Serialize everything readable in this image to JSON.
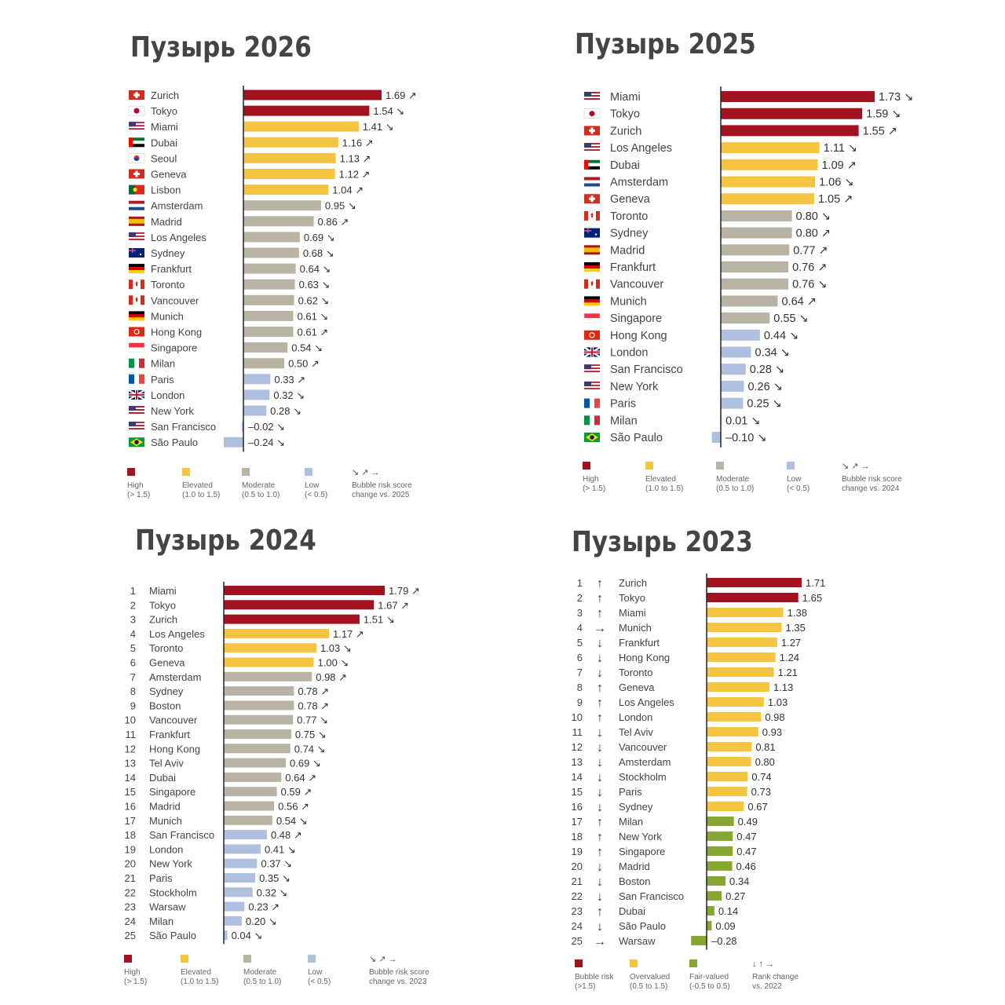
{
  "colors": {
    "high": "#a3121f",
    "elevated": "#f5c542",
    "moderate": "#b8b3a2",
    "low": "#aebfe0",
    "fair": "#86a832",
    "text": "#444444",
    "axis": "#222222"
  },
  "chart_data": [
    {
      "type": "bar",
      "title": "Пузырь 2026",
      "orientation": "horizontal",
      "categories": [
        "Zurich",
        "Tokyo",
        "Miami",
        "Dubai",
        "Seoul",
        "Geneva",
        "Lisbon",
        "Amsterdam",
        "Madrid",
        "Los Angeles",
        "Sydney",
        "Frankfurt",
        "Toronto",
        "Vancouver",
        "Munich",
        "Hong Kong",
        "Singapore",
        "Milan",
        "Paris",
        "London",
        "New York",
        "San Francisco",
        "São Paulo"
      ],
      "values": [
        1.69,
        1.54,
        1.41,
        1.16,
        1.13,
        1.12,
        1.04,
        0.95,
        0.86,
        0.69,
        0.68,
        0.64,
        0.63,
        0.62,
        0.61,
        0.61,
        0.54,
        0.5,
        0.33,
        0.32,
        0.28,
        -0.02,
        -0.24
      ],
      "labels": [
        "1.69 ↗",
        "1.54 ↘",
        "1.41 ↘",
        "1.16 ↗",
        "1.13 ↗",
        "1.12 ↗",
        "1.04 ↗",
        "0.95 ↘",
        "0.86 ↗",
        "0.69 ↘",
        "0.68 ↘",
        "0.64 ↘",
        "0.63 ↘",
        "0.62 ↘",
        "0.61 ↘",
        "0.61 ↗",
        "0.54 ↘",
        "0.50 ↗",
        "0.33 ↗",
        "0.32 ↘",
        "0.28 ↘",
        "–0.02 ↘",
        "–0.24 ↘"
      ],
      "flags": [
        "ch",
        "jp",
        "us",
        "ae",
        "kr",
        "ch",
        "pt",
        "nl",
        "es",
        "us",
        "au",
        "de",
        "ca",
        "ca",
        "de",
        "hk",
        "sg",
        "it",
        "fr",
        "gb",
        "us",
        "us",
        "br"
      ],
      "legend": [
        {
          "color": "high",
          "label": "High",
          "range": "(> 1.5)"
        },
        {
          "color": "elevated",
          "label": "Elevated",
          "range": "(1.0 to 1.5)"
        },
        {
          "color": "moderate",
          "label": "Moderate",
          "range": "(0.5 to 1.0)"
        },
        {
          "color": "low",
          "label": "Low",
          "range": "(< 0.5)"
        },
        {
          "color": "",
          "symbol": "↘ ↗ →",
          "label": "Bubble risk score",
          "range": "change vs. 2025"
        }
      ]
    },
    {
      "type": "bar",
      "title": "Пузырь 2025",
      "orientation": "horizontal",
      "categories": [
        "Miami",
        "Tokyo",
        "Zurich",
        "Los Angeles",
        "Dubai",
        "Amsterdam",
        "Geneva",
        "Toronto",
        "Sydney",
        "Madrid",
        "Frankfurt",
        "Vancouver",
        "Munich",
        "Singapore",
        "Hong Kong",
        "London",
        "San Francisco",
        "New York",
        "Paris",
        "Milan",
        "São Paulo"
      ],
      "values": [
        1.73,
        1.59,
        1.55,
        1.11,
        1.09,
        1.06,
        1.05,
        0.8,
        0.8,
        0.77,
        0.76,
        0.76,
        0.64,
        0.55,
        0.44,
        0.34,
        0.28,
        0.26,
        0.25,
        0.01,
        -0.1
      ],
      "labels": [
        "1.73 ↘",
        "1.59 ↘",
        "1.55 ↗",
        "1.11 ↘",
        "1.09 ↗",
        "1.06 ↘",
        "1.05 ↗",
        "0.80 ↘",
        "0.80 ↗",
        "0.77 ↗",
        "0.76 ↗",
        "0.76 ↘",
        "0.64 ↗",
        "0.55 ↘",
        "0.44 ↘",
        "0.34 ↘",
        "0.28 ↘",
        "0.26 ↘",
        "0.25 ↘",
        "0.01 ↘",
        "–0.10 ↘"
      ],
      "flags": [
        "us",
        "jp",
        "ch",
        "us",
        "ae",
        "nl",
        "ch",
        "ca",
        "au",
        "es",
        "de",
        "ca",
        "de",
        "sg",
        "hk",
        "gb",
        "us",
        "us",
        "fr",
        "it",
        "br"
      ],
      "legend": [
        {
          "color": "high",
          "label": "High",
          "range": "(> 1.5)"
        },
        {
          "color": "elevated",
          "label": "Elevated",
          "range": "(1.0 to 1.5)"
        },
        {
          "color": "moderate",
          "label": "Moderate",
          "range": "(0.5 to 1.0)"
        },
        {
          "color": "low",
          "label": "Low",
          "range": "(< 0.5)"
        },
        {
          "color": "",
          "symbol": "↘ ↗ →",
          "label": "Bubble risk score",
          "range": "change vs. 2024"
        }
      ]
    },
    {
      "type": "bar",
      "title": "Пузырь 2024",
      "orientation": "horizontal",
      "ranks": [
        "1",
        "2",
        "3",
        "4",
        "5",
        "6",
        "7",
        "8",
        "9",
        "10",
        "11",
        "12",
        "13",
        "14",
        "15",
        "16",
        "17",
        "18",
        "19",
        "20",
        "21",
        "22",
        "23",
        "24",
        "25"
      ],
      "categories": [
        "Miami",
        "Tokyo",
        "Zurich",
        "Los Angeles",
        "Toronto",
        "Geneva",
        "Amsterdam",
        "Sydney",
        "Boston",
        "Vancouver",
        "Frankfurt",
        "Hong Kong",
        "Tel Aviv",
        "Dubai",
        "Singapore",
        "Madrid",
        "Munich",
        "San Francisco",
        "London",
        "New York",
        "Paris",
        "Stockholm",
        "Warsaw",
        "Milan",
        "São Paulo"
      ],
      "values": [
        1.79,
        1.67,
        1.51,
        1.17,
        1.03,
        1.0,
        0.98,
        0.78,
        0.78,
        0.77,
        0.75,
        0.74,
        0.69,
        0.64,
        0.59,
        0.56,
        0.54,
        0.48,
        0.41,
        0.37,
        0.35,
        0.32,
        0.23,
        0.2,
        0.04
      ],
      "labels": [
        "1.79 ↗",
        "1.67 ↗",
        "1.51 ↘",
        "1.17 ↗",
        "1.03 ↘",
        "1.00 ↘",
        "0.98 ↗",
        "0.78 ↗",
        "0.78 ↗",
        "0.77 ↘",
        "0.75 ↘",
        "0.74 ↘",
        "0.69 ↘",
        "0.64 ↗",
        "0.59 ↗",
        "0.56 ↗",
        "0.54 ↘",
        "0.48 ↗",
        "0.41 ↘",
        "0.37 ↘",
        "0.35 ↘",
        "0.32 ↘",
        "0.23 ↗",
        "0.20 ↘",
        "0.04 ↘"
      ],
      "legend": [
        {
          "color": "high",
          "label": "High",
          "range": "(> 1.5)"
        },
        {
          "color": "elevated",
          "label": "Elevated",
          "range": "(1.0 to 1.5)"
        },
        {
          "color": "moderate",
          "label": "Moderate",
          "range": "(0.5 to 1.0)"
        },
        {
          "color": "low",
          "label": "Low",
          "range": "(< 0.5)"
        },
        {
          "color": "",
          "symbol": "↘ ↗ →",
          "label": "Bubble risk score",
          "range": "change vs. 2023"
        }
      ]
    },
    {
      "type": "bar",
      "title": "Пузырь 2023",
      "orientation": "horizontal",
      "ranks": [
        "1",
        "2",
        "3",
        "4",
        "5",
        "6",
        "7",
        "8",
        "9",
        "10",
        "11",
        "12",
        "13",
        "14",
        "15",
        "16",
        "17",
        "18",
        "19",
        "20",
        "21",
        "22",
        "23",
        "24",
        "25"
      ],
      "rank_change": [
        "↑",
        "↑",
        "↑",
        "→",
        "↓",
        "↓",
        "↓",
        "↑",
        "↑",
        "↑",
        "↓",
        "↓",
        "↓",
        "↓",
        "↓",
        "↓",
        "↑",
        "↑",
        "↑",
        "↓",
        "↓",
        "↓",
        "↑",
        "↓",
        "→"
      ],
      "categories": [
        "Zurich",
        "Tokyo",
        "Miami",
        "Munich",
        "Frankfurt",
        "Hong Kong",
        "Toronto",
        "Geneva",
        "Los Angeles",
        "London",
        "Tel Aviv",
        "Vancouver",
        "Amsterdam",
        "Stockholm",
        "Paris",
        "Sydney",
        "Milan",
        "New York",
        "Singapore",
        "Madrid",
        "Boston",
        "San Francisco",
        "Dubai",
        "São Paulo",
        "Warsaw"
      ],
      "values": [
        1.71,
        1.65,
        1.38,
        1.35,
        1.27,
        1.24,
        1.21,
        1.13,
        1.03,
        0.98,
        0.93,
        0.81,
        0.8,
        0.74,
        0.73,
        0.67,
        0.49,
        0.47,
        0.47,
        0.46,
        0.34,
        0.27,
        0.14,
        0.09,
        -0.28
      ],
      "labels": [
        "1.71",
        "1.65",
        "1.38",
        "1.35",
        "1.27",
        "1.24",
        "1.21",
        "1.13",
        "1.03",
        "0.98",
        "0.93",
        "0.81",
        "0.80",
        "0.74",
        "0.73",
        "0.67",
        "0.49",
        "0.47",
        "0.47",
        "0.46",
        "0.34",
        "0.27",
        "0.14",
        "0.09",
        "–0.28"
      ],
      "legend": [
        {
          "color": "high",
          "label": "Bubble risk",
          "range": "(>1.5)"
        },
        {
          "color": "elevated",
          "label": "Overvalued",
          "range": "(0.5 to 1.5)"
        },
        {
          "color": "fair",
          "label": "Fair-valued",
          "range": "(-0.5 to 0.5)"
        },
        {
          "color": "",
          "symbol": "↓ ↑ →",
          "label": "Rank change",
          "range": "vs. 2022"
        }
      ]
    }
  ]
}
